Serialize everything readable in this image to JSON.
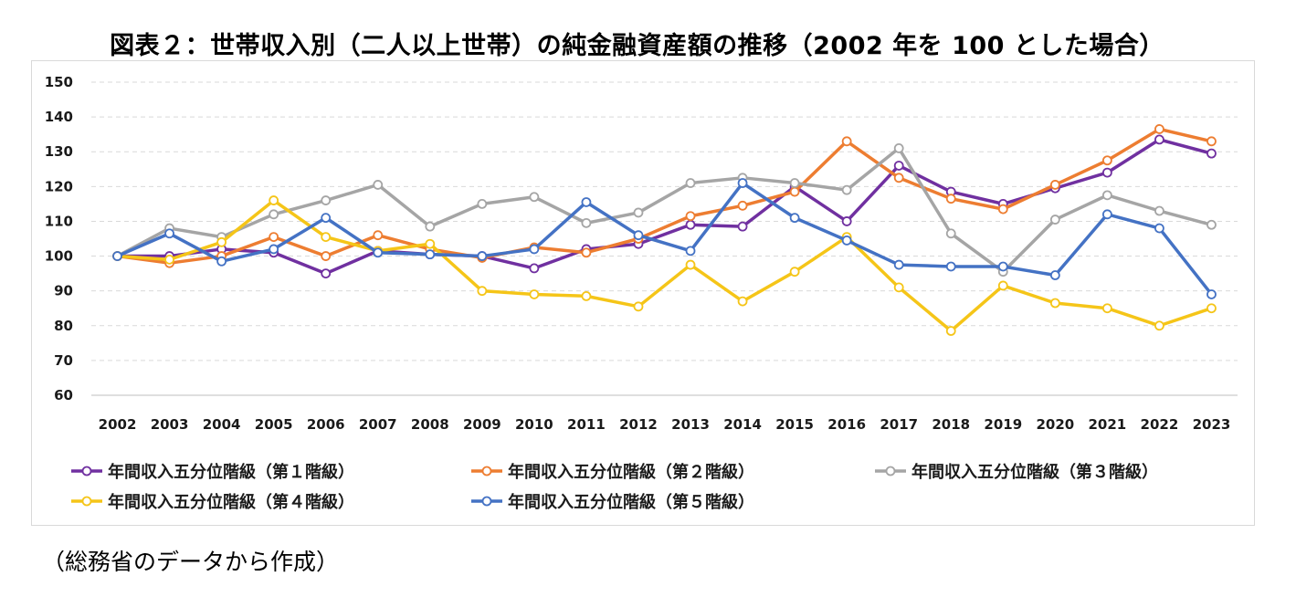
{
  "chart_data": {
    "type": "line",
    "title": "図表２：世帯収入別（二人以上世帯）の純金融資産額の推移（2002 年を 100 とした場合）",
    "xlabel": "",
    "ylabel": "",
    "ylim": [
      60,
      150
    ],
    "yticks": [
      60,
      70,
      80,
      90,
      100,
      110,
      120,
      130,
      140,
      150
    ],
    "grid": "horizontal-dashed",
    "legend_position": "bottom",
    "categories": [
      "2002",
      "2003",
      "2004",
      "2005",
      "2006",
      "2007",
      "2008",
      "2009",
      "2010",
      "2011",
      "2012",
      "2013",
      "2014",
      "2015",
      "2016",
      "2017",
      "2018",
      "2019",
      "2020",
      "2021",
      "2022",
      "2023"
    ],
    "series": [
      {
        "name": "年間収入五分位階級（第１階級）",
        "color": "#7030a0",
        "values": [
          100,
          100,
          102,
          101,
          95,
          101.5,
          100.5,
          100,
          96.5,
          102,
          103.5,
          109,
          108.5,
          120,
          110,
          126,
          118.5,
          115,
          119.5,
          124,
          133.5,
          129.5
        ]
      },
      {
        "name": "年間収入五分位階級（第２階級）",
        "color": "#ed7d31",
        "values": [
          100,
          98,
          100,
          105.5,
          100,
          106,
          102,
          99.5,
          102.5,
          101,
          105,
          111.5,
          114.5,
          118.5,
          133,
          122.5,
          116.5,
          113.5,
          120.5,
          127.5,
          136.5,
          133
        ]
      },
      {
        "name": "年間収入五分位階級（第３階級）",
        "color": "#a5a5a5",
        "values": [
          100,
          108,
          105.5,
          112,
          116,
          120.5,
          108.5,
          115,
          117,
          109.5,
          112.5,
          121,
          122.5,
          121,
          119,
          131,
          106.5,
          95.5,
          110.5,
          117.5,
          113,
          109
        ]
      },
      {
        "name": "年間収入五分位階級（第４階級）",
        "color": "#f5c518",
        "values": [
          100,
          99,
          104,
          116,
          105.5,
          101.5,
          103.5,
          90,
          89,
          88.5,
          85.5,
          97.5,
          87,
          95.5,
          105.5,
          91,
          78.5,
          91.5,
          86.5,
          85,
          80,
          85
        ]
      },
      {
        "name": "年間収入五分位階級（第５階級）",
        "color": "#4472c4",
        "values": [
          100,
          106.5,
          98.5,
          102,
          111,
          101,
          100.5,
          100,
          102,
          115.5,
          106,
          101.5,
          121,
          111,
          104.5,
          97.5,
          97,
          97,
          94.5,
          112,
          108,
          89
        ]
      }
    ]
  },
  "source_note": "（総務省のデータから作成）"
}
